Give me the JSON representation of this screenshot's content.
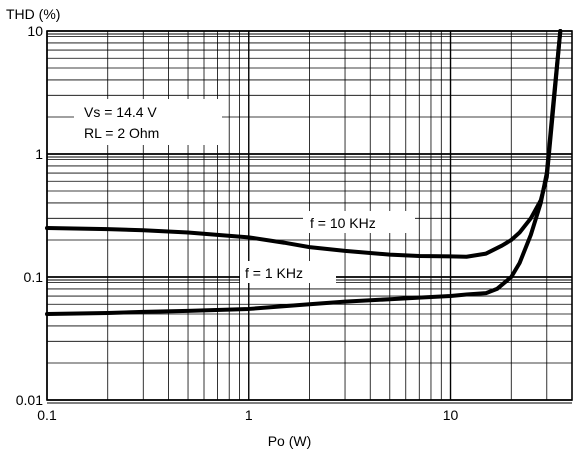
{
  "chart_data": {
    "type": "line",
    "title": "",
    "xlabel": "Po (W)",
    "ylabel": "THD (%)",
    "xscale": "log",
    "yscale": "log",
    "xlim": [
      0.1,
      40
    ],
    "ylim": [
      0.01,
      10
    ],
    "grid": true,
    "x_ticks": [
      {
        "value": 0.1,
        "label": "0.1"
      },
      {
        "value": 1,
        "label": "1"
      },
      {
        "value": 10,
        "label": "10"
      }
    ],
    "y_ticks": [
      {
        "value": 0.01,
        "label": "0.01"
      },
      {
        "value": 0.1,
        "label": "0.1"
      },
      {
        "value": 1,
        "label": "1"
      },
      {
        "value": 10,
        "label": "10"
      }
    ],
    "conditions": [
      "Vs = 14.4 V",
      "RL = 2 Ohm"
    ],
    "series": [
      {
        "name": "f = 10 KHz",
        "x": [
          0.1,
          0.2,
          0.3,
          0.5,
          0.7,
          1,
          1.5,
          2,
          3,
          5,
          7,
          10,
          12,
          15,
          18,
          20,
          22,
          25,
          28,
          30,
          32,
          35
        ],
        "y": [
          0.25,
          0.245,
          0.24,
          0.23,
          0.22,
          0.21,
          0.19,
          0.175,
          0.163,
          0.152,
          0.148,
          0.147,
          0.146,
          0.155,
          0.18,
          0.2,
          0.23,
          0.3,
          0.42,
          0.65,
          2,
          10
        ]
      },
      {
        "name": "f = 1 KHz",
        "x": [
          0.1,
          0.2,
          0.3,
          0.5,
          1,
          2,
          3,
          5,
          7,
          10,
          12,
          15,
          17,
          20,
          22,
          25,
          28,
          30,
          32,
          35
        ],
        "y": [
          0.05,
          0.051,
          0.052,
          0.053,
          0.055,
          0.06,
          0.063,
          0.066,
          0.068,
          0.07,
          0.072,
          0.074,
          0.08,
          0.1,
          0.13,
          0.22,
          0.4,
          0.7,
          2.2,
          10
        ]
      }
    ],
    "colors": {
      "line": "#000000",
      "grid": "#000000",
      "background": "#ffffff"
    }
  }
}
